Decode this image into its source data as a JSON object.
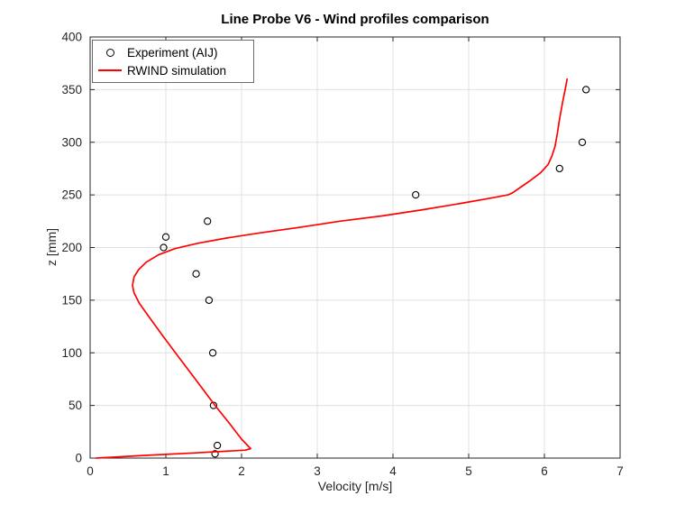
{
  "chart_data": {
    "type": "line",
    "title": "Line Probe V6 - Wind profiles comparison",
    "xlabel": "Velocity [m/s]",
    "ylabel": "z [mm]",
    "xlim": [
      0,
      7
    ],
    "ylim": [
      0,
      400
    ],
    "xticks": [
      0,
      1,
      2,
      3,
      4,
      5,
      6,
      7
    ],
    "yticks": [
      0,
      50,
      100,
      150,
      200,
      250,
      300,
      350,
      400
    ],
    "grid": true,
    "legend_position": "top-left",
    "colors": {
      "axis": "#262626",
      "grid": "#e0e0e0",
      "experiment": "#000000",
      "simulation": "#ff0000"
    },
    "series": [
      {
        "name": "Experiment (AIJ)",
        "style": "scatter",
        "marker": "circle-open",
        "color": "#000000",
        "points": [
          [
            6.55,
            350
          ],
          [
            6.5,
            300
          ],
          [
            6.2,
            275
          ],
          [
            4.3,
            250
          ],
          [
            1.55,
            225
          ],
          [
            1.0,
            210
          ],
          [
            0.97,
            200
          ],
          [
            1.4,
            175
          ],
          [
            1.57,
            150
          ],
          [
            1.62,
            100
          ],
          [
            1.63,
            50
          ],
          [
            1.68,
            12
          ],
          [
            1.65,
            4
          ]
        ]
      },
      {
        "name": "RWIND simulation",
        "style": "line",
        "color": "#ff0000",
        "points": [
          [
            0.08,
            0
          ],
          [
            0.7,
            2.5
          ],
          [
            1.4,
            5
          ],
          [
            2.05,
            7.5
          ],
          [
            2.12,
            9
          ],
          [
            2.0,
            18
          ],
          [
            1.85,
            32
          ],
          [
            1.65,
            50
          ],
          [
            1.42,
            72
          ],
          [
            1.18,
            95
          ],
          [
            0.95,
            117
          ],
          [
            0.78,
            134
          ],
          [
            0.65,
            147
          ],
          [
            0.58,
            157
          ],
          [
            0.56,
            164
          ],
          [
            0.58,
            172
          ],
          [
            0.64,
            179
          ],
          [
            0.74,
            186
          ],
          [
            0.9,
            193
          ],
          [
            1.12,
            199
          ],
          [
            1.42,
            204
          ],
          [
            1.8,
            209
          ],
          [
            2.25,
            214
          ],
          [
            2.75,
            219
          ],
          [
            3.3,
            225
          ],
          [
            3.85,
            230
          ],
          [
            4.4,
            236
          ],
          [
            4.9,
            242
          ],
          [
            5.3,
            247
          ],
          [
            5.52,
            250
          ],
          [
            5.58,
            252
          ],
          [
            5.68,
            257
          ],
          [
            5.82,
            264
          ],
          [
            5.95,
            271
          ],
          [
            6.05,
            279
          ],
          [
            6.1,
            287
          ],
          [
            6.14,
            296
          ],
          [
            6.17,
            308
          ],
          [
            6.2,
            322
          ],
          [
            6.24,
            338
          ],
          [
            6.28,
            352
          ],
          [
            6.3,
            360
          ]
        ]
      }
    ]
  }
}
